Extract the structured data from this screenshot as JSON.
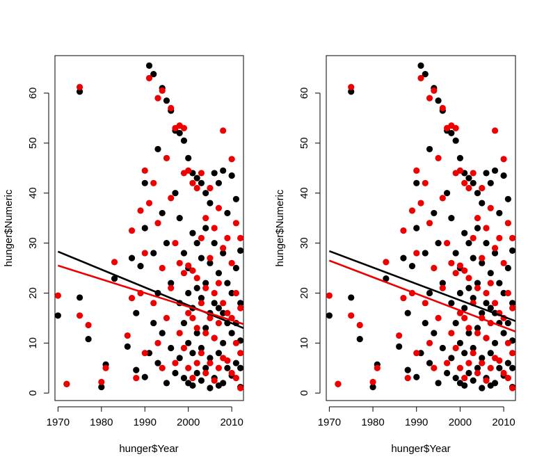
{
  "chart_data": [
    {
      "type": "scatter",
      "title": "",
      "xlabel": "hunger$Year",
      "ylabel": "hunger$Numeric",
      "xlim": [
        1969.3,
        2012.7
      ],
      "ylim": [
        -1.5,
        67.5
      ],
      "xticks": [
        "1970",
        "1980",
        "1990",
        "2000",
        "2010"
      ],
      "yticks": [
        "0",
        "10",
        "20",
        "30",
        "40",
        "50",
        "60"
      ],
      "grid": false,
      "legend": "none",
      "colors": {
        "series_a": "#000000",
        "series_b": "#ee0000"
      },
      "series": [
        {
          "color": "#000000",
          "x": [
            1970,
            1972,
            1975,
            1975,
            1977,
            1980,
            1981,
            1983,
            1986,
            1987,
            1988,
            1988,
            1989,
            1990,
            1990,
            1990,
            1991,
            1991,
            1992,
            1992,
            1992,
            1993,
            1993,
            1993,
            1994,
            1994,
            1994,
            1995,
            1995,
            1995,
            1996,
            1996,
            1996,
            1997,
            1997,
            1997,
            1998,
            1998,
            1998,
            1998,
            1999,
            1999,
            1999,
            1999,
            2000,
            2000,
            2000,
            2000,
            2000,
            2001,
            2001,
            2001,
            2001,
            2001,
            2002,
            2002,
            2002,
            2002,
            2002,
            2003,
            2003,
            2003,
            2003,
            2003,
            2004,
            2004,
            2004,
            2004,
            2004,
            2005,
            2005,
            2005,
            2005,
            2005,
            2006,
            2006,
            2006,
            2006,
            2006,
            2007,
            2007,
            2007,
            2007,
            2007,
            2008,
            2008,
            2008,
            2008,
            2008,
            2009,
            2009,
            2009,
            2009,
            2010,
            2010,
            2010,
            2010,
            2011,
            2011,
            2011,
            2011,
            2012,
            2012,
            2012,
            2012,
            2012
          ],
          "y": [
            15.5,
            1.8,
            60.3,
            19.1,
            10.8,
            1.2,
            5.7,
            22.9,
            9.3,
            27.0,
            16.0,
            4.6,
            25.4,
            42.0,
            33.0,
            3.2,
            65.5,
            8.0,
            63.8,
            28.0,
            14.0,
            48.8,
            20.0,
            6.0,
            61.0,
            36.0,
            12.0,
            58.5,
            30.0,
            2.0,
            56.5,
            22.0,
            9.0,
            52.5,
            40.0,
            4.0,
            52.0,
            35.0,
            18.0,
            7.0,
            50.5,
            28.0,
            14.0,
            3.0,
            47.0,
            25.0,
            20.0,
            10.0,
            2.0,
            44.0,
            32.0,
            17.0,
            8.0,
            1.5,
            43.0,
            30.0,
            21.0,
            12.0,
            4.0,
            42.0,
            27.0,
            19.0,
            9.0,
            2.5,
            40.0,
            33.0,
            22.0,
            13.0,
            5.0,
            38.0,
            26.0,
            16.0,
            7.0,
            1.0,
            44.0,
            30.0,
            18.0,
            11.0,
            3.0,
            42.0,
            24.0,
            17.0,
            8.0,
            1.5,
            44.5,
            28.0,
            16.0,
            10.0,
            2.0,
            36.0,
            22.0,
            14.0,
            5.0,
            43.5,
            20.0,
            12.0,
            3.5,
            38.8,
            25.0,
            14.0,
            6.0,
            28.5,
            18.0,
            10.5,
            5.0,
            1.2
          ],
          "fit": {
            "panel1": [
              28.3,
              13.0
            ],
            "panel2": [
              28.4,
              14.4
            ]
          }
        },
        {
          "color": "#ee0000",
          "x": [
            1970,
            1972,
            1975,
            1975,
            1977,
            1980,
            1981,
            1983,
            1986,
            1987,
            1987,
            1988,
            1989,
            1989,
            1990,
            1990,
            1990,
            1991,
            1991,
            1992,
            1992,
            1993,
            1993,
            1993,
            1994,
            1994,
            1994,
            1995,
            1995,
            1996,
            1996,
            1996,
            1997,
            1997,
            1997,
            1998,
            1998,
            1998,
            1999,
            1999,
            1999,
            1999,
            2000,
            2000,
            2000,
            2000,
            2001,
            2001,
            2001,
            2001,
            2002,
            2002,
            2002,
            2002,
            2003,
            2003,
            2003,
            2003,
            2004,
            2004,
            2004,
            2004,
            2005,
            2005,
            2005,
            2005,
            2006,
            2006,
            2006,
            2006,
            2007,
            2007,
            2007,
            2007,
            2008,
            2008,
            2008,
            2008,
            2009,
            2009,
            2009,
            2010,
            2010,
            2010,
            2010,
            2011,
            2011,
            2011,
            2011,
            2012,
            2012,
            2012,
            2012
          ],
          "y": [
            19.5,
            1.8,
            61.2,
            15.5,
            13.6,
            2.2,
            5.0,
            26.2,
            11.5,
            32.5,
            19.0,
            3.0,
            36.5,
            20.0,
            44.5,
            28.0,
            8.0,
            63.0,
            38.0,
            42.0,
            18.0,
            59.0,
            34.0,
            10.0,
            60.5,
            25.0,
            5.0,
            47.0,
            15.0,
            57.0,
            39.0,
            21.0,
            53.0,
            30.0,
            6.0,
            53.5,
            26.0,
            12.0,
            53.0,
            44.0,
            24.0,
            9.0,
            44.5,
            25.5,
            16.0,
            5.0,
            42.0,
            24.5,
            15.0,
            3.0,
            41.0,
            23.0,
            13.0,
            6.0,
            44.0,
            31.0,
            18.0,
            8.0,
            35.0,
            21.0,
            12.0,
            4.0,
            41.0,
            27.0,
            15.0,
            6.0,
            33.0,
            20.0,
            11.0,
            2.5,
            37.0,
            22.0,
            14.0,
            5.0,
            52.5,
            29.0,
            18.0,
            7.0,
            31.0,
            16.0,
            6.5,
            46.8,
            26.0,
            15.0,
            4.0,
            34.0,
            20.0,
            10.0,
            3.0,
            31.0,
            17.0,
            8.0,
            1.0
          ],
          "fit": {
            "panel1": [
              25.5,
              13.8
            ],
            "panel2": [
              26.5,
              12.3
            ]
          }
        }
      ]
    }
  ]
}
